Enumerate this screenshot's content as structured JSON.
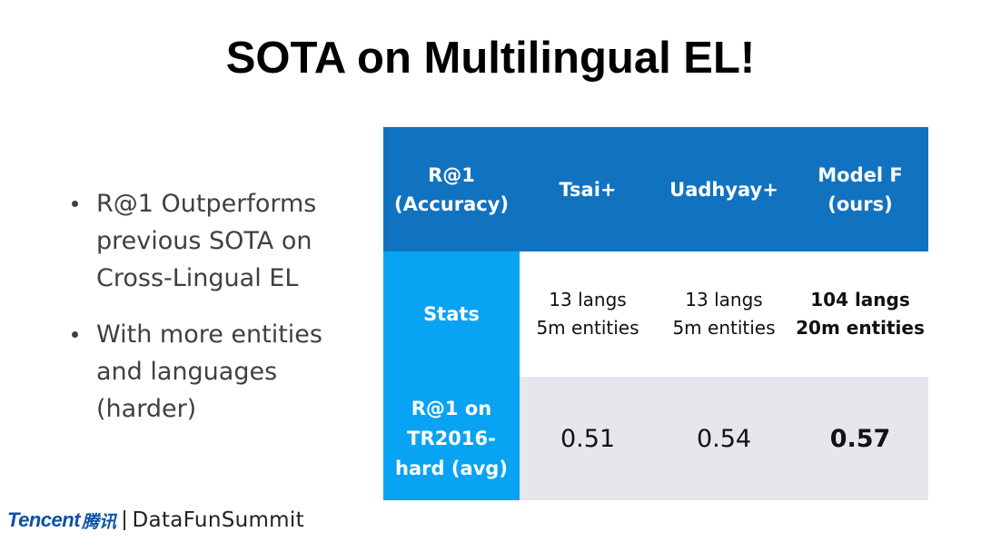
{
  "slide": {
    "title": "SOTA on Multilingual EL!"
  },
  "bullets": [
    {
      "text": "R@1 Outperforms previous SOTA on Cross-Lingual EL"
    },
    {
      "text": "With more entities and languages (harder)"
    }
  ],
  "table": {
    "header": {
      "metric": [
        "R@1",
        "(Accuracy)"
      ],
      "col1": "Tsai+",
      "col2": "Uadhyay+",
      "col3": [
        "Model F",
        "(ours)"
      ]
    },
    "stats_row": {
      "label": "Stats",
      "col1": [
        "13 langs",
        "5m entities"
      ],
      "col2": [
        "13 langs",
        "5m entities"
      ],
      "col3": [
        "104 langs",
        "20m entities"
      ]
    },
    "r1_row": {
      "label": [
        "R@1 on",
        "TR2016-",
        "hard (avg)"
      ],
      "col1": "0.51",
      "col2": "0.54",
      "col3": "0.57"
    },
    "colors": {
      "header_bg": "#1173c0",
      "row_label_bg": "#08a3f3",
      "r1_row_bg": "#e7e6ec"
    }
  },
  "footer": {
    "tencent_logo": "Tencent",
    "tencent_logo_cn": "腾讯",
    "datafun_logo": "DataFunSummit"
  }
}
